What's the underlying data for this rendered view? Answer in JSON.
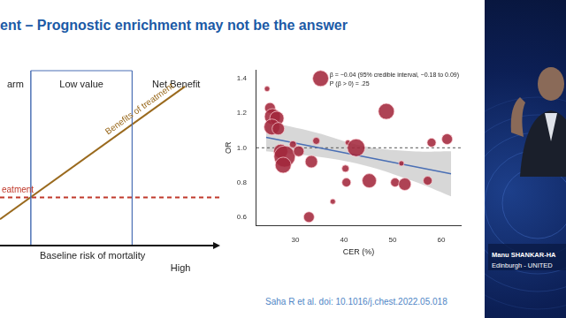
{
  "slide": {
    "title": "ent – Prognostic enrichment may not be the answer",
    "citation": "Saha R et al. doi: 10.1016/j.chest.2022.05.018",
    "speaker": {
      "name": "Manu SHANKAR-HA",
      "affiliation": "Edinburgh - UNITED"
    }
  },
  "chart_data": [
    {
      "type": "line",
      "x_label": "Baseline risk of mortality",
      "x_end_label": "High",
      "tick_labels": false,
      "grid": false,
      "xlim": [
        0,
        10
      ],
      "ylim": [
        0,
        10
      ],
      "regions": [
        {
          "label": "arm",
          "from": 0,
          "to": 1.4
        },
        {
          "label": "Low value",
          "from": 1.4,
          "to": 6
        },
        {
          "label": "Net Benefit",
          "from": 6,
          "to": 10
        }
      ],
      "series": [
        {
          "name": "Benefits of treatment",
          "color": "#9a6a1e",
          "line_style": "solid",
          "x": [
            0,
            8.4
          ],
          "values": [
            1.5,
            9.1
          ]
        },
        {
          "name": "eatment",
          "color": "#c0392b",
          "line_style": "dashed",
          "x": [
            0,
            10
          ],
          "values": [
            2.75,
            2.75
          ]
        }
      ]
    },
    {
      "type": "bubble",
      "x_label": "CER (%)",
      "y_label": "OR",
      "grid": false,
      "xlim": [
        22,
        64
      ],
      "xticks": [
        30,
        40,
        50,
        60
      ],
      "ylim": [
        0.55,
        1.45
      ],
      "yticks": [
        0.6,
        0.8,
        {
          "value": 1.0,
          "label": "1.0"
        },
        1.2,
        1.4
      ],
      "annotations": [
        "β = −0.04 (95% credible interval, −0.18 to 0.09)",
        "P (β > 0) = .25"
      ],
      "reference_line": 1.0,
      "color": "#a3283c",
      "x": [
        24.2,
        24.8,
        25.3,
        26.2,
        25.2,
        26.5,
        27.0,
        27.8,
        27.5,
        30.7,
        29.5,
        33.3,
        34.3,
        35.2,
        32.8,
        37.7,
        40.3,
        40.5,
        40.8,
        42.5,
        45.2,
        48.7,
        50.5,
        51.8,
        52.5,
        57.2,
        58.0,
        61.2
      ],
      "values": [
        1.34,
        1.23,
        1.18,
        1.17,
        1.12,
        1.11,
        0.98,
        0.95,
        0.9,
        0.98,
        1.02,
        0.92,
        1.04,
        1.4,
        0.6,
        0.69,
        0.88,
        0.8,
        1.03,
        1.0,
        0.81,
        1.21,
        0.8,
        0.91,
        0.79,
        0.81,
        1.03,
        1.05
      ],
      "sizes": [
        3,
        6,
        9,
        8,
        9,
        7,
        8,
        12,
        9,
        6,
        4,
        7,
        4,
        9,
        6,
        3,
        4,
        5,
        3,
        10,
        8,
        9,
        5,
        3,
        7,
        5,
        5,
        6
      ],
      "fit": {
        "color": "#4a6fb5",
        "x": [
          24,
          62
        ],
        "values": [
          1.06,
          0.85
        ]
      },
      "ci_band": {
        "x": [
          24,
          34,
          44,
          54,
          62
        ],
        "lower": [
          0.98,
          0.95,
          0.9,
          0.81,
          0.72
        ],
        "upper": [
          1.15,
          1.09,
          1.01,
          0.98,
          0.98
        ]
      }
    }
  ]
}
